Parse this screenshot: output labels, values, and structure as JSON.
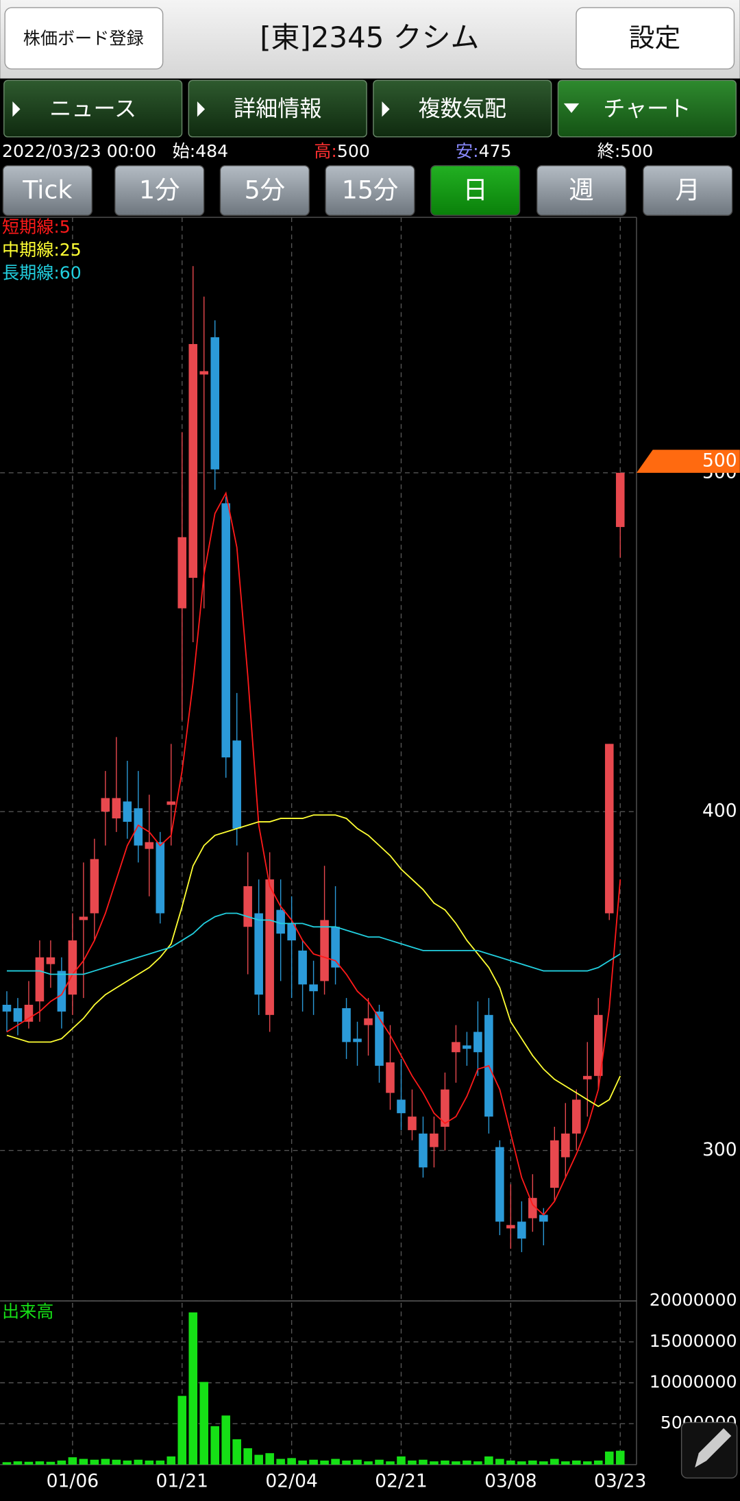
{
  "header": {
    "left_button": "株価ボード登録",
    "title": "[東]2345 クシム",
    "right_button": "設定"
  },
  "tabs": {
    "items": [
      "ニュース",
      "詳細情報",
      "複数気配",
      "チャート"
    ],
    "active": 3
  },
  "quote": {
    "date": "2022/03/23 00:00",
    "open_label": "始:",
    "open": 484,
    "high_label": "高:",
    "high": 500,
    "low_label": "安:",
    "low": 475,
    "close_label": "終:",
    "close": 500
  },
  "periods": {
    "items": [
      "Tick",
      "1分",
      "5分",
      "15分",
      "日",
      "週",
      "月"
    ],
    "active": 4
  },
  "chart_data": {
    "type": "candlestick",
    "categories": [
      null,
      null,
      null,
      null,
      null,
      null,
      "01/06",
      null,
      null,
      null,
      null,
      null,
      null,
      null,
      null,
      null,
      "01/21",
      null,
      null,
      null,
      null,
      null,
      null,
      null,
      null,
      null,
      "02/04",
      null,
      null,
      null,
      null,
      null,
      null,
      null,
      null,
      null,
      "02/21",
      null,
      null,
      null,
      null,
      null,
      null,
      null,
      null,
      null,
      "03/08",
      null,
      null,
      null,
      null,
      null,
      null,
      null,
      null,
      null,
      "03/23"
    ],
    "open": [
      343,
      342,
      338,
      344,
      355,
      353,
      346,
      368,
      370,
      400,
      398,
      403,
      401,
      389,
      391,
      402,
      460,
      469,
      529,
      540,
      491,
      421,
      366,
      370,
      340,
      371,
      367,
      359,
      349,
      350,
      366,
      342,
      333,
      337,
      341,
      317,
      315,
      306,
      305,
      301,
      307,
      329,
      331,
      335,
      340,
      301,
      277,
      279,
      280,
      281,
      289,
      298,
      305,
      321,
      322,
      370,
      484
    ],
    "high": [
      347,
      345,
      350,
      362,
      362,
      357,
      370,
      385,
      392,
      412,
      422,
      415,
      412,
      405,
      394,
      420,
      512,
      561,
      552,
      545,
      493,
      435,
      388,
      380,
      388,
      380,
      375,
      362,
      356,
      384,
      378,
      345,
      338,
      345,
      343,
      337,
      327,
      318,
      310,
      310,
      323,
      337,
      335,
      344,
      345,
      303,
      290,
      285,
      293,
      283,
      307,
      314,
      318,
      332,
      345,
      420,
      500
    ],
    "low": [
      335,
      334,
      336,
      338,
      348,
      336,
      340,
      345,
      362,
      390,
      394,
      392,
      385,
      375,
      367,
      390,
      427,
      450,
      460,
      495,
      410,
      390,
      352,
      340,
      335,
      350,
      345,
      341,
      340,
      346,
      349,
      327,
      325,
      328,
      320,
      312,
      306,
      303,
      292,
      295,
      300,
      320,
      325,
      322,
      305,
      275,
      271,
      270,
      276,
      272,
      285,
      292,
      300,
      310,
      318,
      368,
      475
    ],
    "close": [
      341,
      338,
      343,
      357,
      357,
      341,
      362,
      369,
      386,
      404,
      404,
      397,
      390,
      391,
      370,
      403,
      481,
      538,
      530,
      501,
      416,
      395,
      378,
      346,
      380,
      364,
      362,
      349,
      347,
      368,
      354,
      332,
      332,
      339,
      325,
      326,
      311,
      310,
      295,
      305,
      318,
      332,
      330,
      329,
      310,
      279,
      278,
      274,
      286,
      279,
      303,
      305,
      315,
      322,
      340,
      420,
      500
    ],
    "up_color": "#e8484e",
    "down_color": "#2b9ad8",
    "series": [
      {
        "name": "短期線:5",
        "color": "#ff1a1a",
        "values": [
          335,
          337,
          339,
          341,
          344,
          346,
          352,
          356,
          362,
          370,
          380,
          390,
          396,
          394,
          390,
          393,
          412,
          438,
          470,
          488,
          494,
          478,
          440,
          396,
          378,
          372,
          368,
          362,
          358,
          357,
          356,
          352,
          347,
          344,
          339,
          334,
          328,
          322,
          317,
          311,
          308,
          310,
          316,
          324,
          325,
          318,
          305,
          292,
          284,
          281,
          285,
          292,
          299,
          307,
          318,
          342,
          380
        ]
      },
      {
        "name": "中期線:25",
        "color": "#ffff33",
        "values": [
          334,
          333,
          332,
          332,
          332,
          333,
          336,
          339,
          343,
          346,
          348,
          350,
          352,
          354,
          357,
          361,
          372,
          384,
          390,
          393,
          394,
          395,
          396,
          397,
          397,
          398,
          398,
          398,
          399,
          399,
          399,
          398,
          395,
          393,
          390,
          387,
          383,
          380,
          377,
          373,
          371,
          367,
          362,
          358,
          354,
          348,
          338,
          333,
          328,
          324,
          321,
          319,
          317,
          315,
          313,
          315,
          322
        ]
      },
      {
        "name": "長期線:60",
        "color": "#22d0e0",
        "values": [
          353,
          353,
          353,
          353,
          352,
          352,
          352,
          352,
          353,
          354,
          355,
          356,
          357,
          358,
          359,
          360,
          362,
          364,
          367,
          369,
          370,
          370,
          369,
          368,
          368,
          367,
          367,
          367,
          366,
          366,
          366,
          365,
          364,
          363,
          363,
          362,
          361,
          360,
          359,
          359,
          359,
          359,
          359,
          359,
          358,
          357,
          356,
          355,
          354,
          353,
          353,
          353,
          353,
          353,
          354,
          356,
          358
        ]
      }
    ],
    "ylim": [
      255.6,
      575.4
    ],
    "yticks": [
      300,
      400,
      500
    ],
    "grid": true,
    "current_color": "#ff6a10",
    "volume": {
      "label": "出来高",
      "color": "#16e016",
      "values": [
        300000,
        400000,
        350000,
        400000,
        350000,
        500000,
        900000,
        700000,
        600000,
        700000,
        600000,
        500000,
        600000,
        500000,
        500000,
        1000000,
        8400000,
        18600000,
        10100000,
        4700000,
        6000000,
        3100000,
        2000000,
        1200000,
        1400000,
        700000,
        800000,
        500000,
        600000,
        500000,
        700000,
        500000,
        600000,
        400000,
        600000,
        400000,
        1000000,
        500000,
        600000,
        400000,
        500000,
        400000,
        500000,
        400000,
        1000000,
        700000,
        500000,
        400000,
        500000,
        400000,
        700000,
        400000,
        500000,
        400000,
        500000,
        1600000,
        1700000
      ],
      "ylim": [
        0,
        20000000
      ],
      "yticks": [
        5000000,
        10000000,
        15000000,
        20000000
      ]
    }
  }
}
